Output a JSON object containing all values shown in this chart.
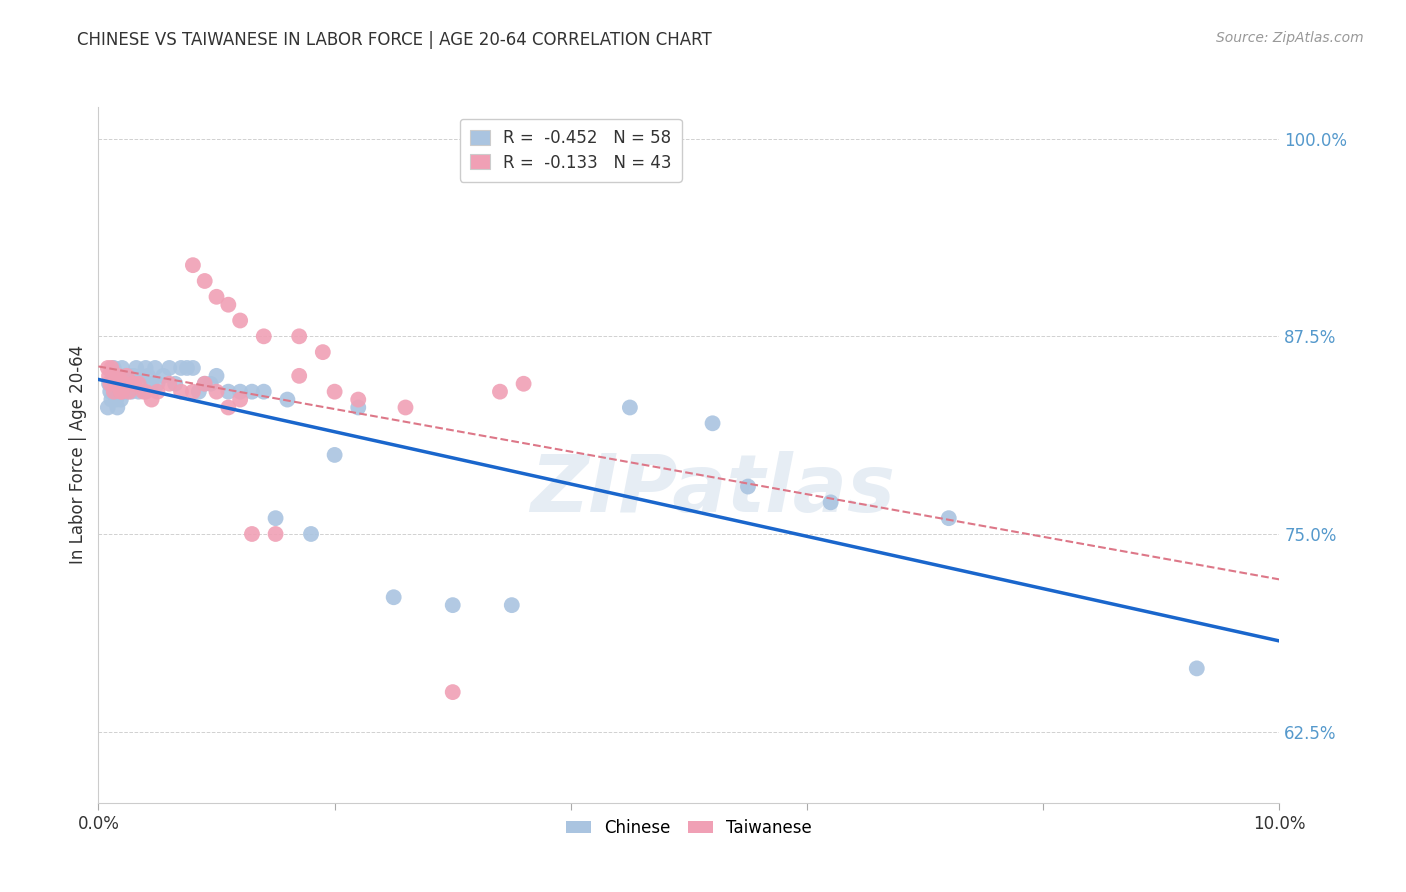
{
  "title": "CHINESE VS TAIWANESE IN LABOR FORCE | AGE 20-64 CORRELATION CHART",
  "source": "Source: ZipAtlas.com",
  "ylabel": "In Labor Force | Age 20-64",
  "xlim": [
    0.0,
    0.1
  ],
  "ylim": [
    0.58,
    1.02
  ],
  "yticks": [
    0.625,
    0.75,
    0.875,
    1.0
  ],
  "ytick_labels": [
    "62.5%",
    "75.0%",
    "87.5%",
    "100.0%"
  ],
  "xticks": [
    0.0,
    0.02,
    0.04,
    0.06,
    0.08,
    0.1
  ],
  "xtick_labels": [
    "0.0%",
    "",
    "",
    "",
    "",
    "10.0%"
  ],
  "chinese_R": -0.452,
  "chinese_N": 58,
  "taiwanese_R": -0.133,
  "taiwanese_N": 43,
  "chinese_color": "#aac4e0",
  "taiwanese_color": "#f0a0b5",
  "chinese_line_color": "#1a66cc",
  "taiwanese_line_color": "#dd7788",
  "background_color": "#ffffff",
  "watermark": "ZIPatlas",
  "chinese_x": [
    0.0008,
    0.0009,
    0.001,
    0.0011,
    0.0012,
    0.0013,
    0.0014,
    0.0015,
    0.0016,
    0.0017,
    0.0018,
    0.0019,
    0.002,
    0.0021,
    0.0022,
    0.0023,
    0.0024,
    0.0025,
    0.0026,
    0.0027,
    0.0028,
    0.003,
    0.0032,
    0.0034,
    0.0036,
    0.004,
    0.0042,
    0.0045,
    0.0048,
    0.005,
    0.0055,
    0.006,
    0.0065,
    0.007,
    0.0075,
    0.008,
    0.0085,
    0.009,
    0.0095,
    0.01,
    0.011,
    0.012,
    0.013,
    0.014,
    0.015,
    0.016,
    0.018,
    0.02,
    0.022,
    0.025,
    0.03,
    0.035,
    0.045,
    0.052,
    0.055,
    0.062,
    0.072,
    0.093
  ],
  "chinese_y": [
    0.83,
    0.845,
    0.84,
    0.835,
    0.85,
    0.855,
    0.84,
    0.835,
    0.83,
    0.84,
    0.845,
    0.835,
    0.855,
    0.845,
    0.84,
    0.85,
    0.84,
    0.845,
    0.845,
    0.85,
    0.84,
    0.85,
    0.855,
    0.84,
    0.85,
    0.855,
    0.85,
    0.845,
    0.855,
    0.845,
    0.85,
    0.855,
    0.845,
    0.855,
    0.855,
    0.855,
    0.84,
    0.845,
    0.845,
    0.85,
    0.84,
    0.84,
    0.84,
    0.84,
    0.76,
    0.835,
    0.75,
    0.8,
    0.83,
    0.71,
    0.705,
    0.705,
    0.83,
    0.82,
    0.78,
    0.77,
    0.76,
    0.665
  ],
  "taiwanese_x": [
    0.0008,
    0.0009,
    0.001,
    0.0011,
    0.0012,
    0.0013,
    0.0015,
    0.0017,
    0.0019,
    0.002,
    0.0022,
    0.0024,
    0.0026,
    0.003,
    0.0034,
    0.0038,
    0.004,
    0.0045,
    0.005,
    0.006,
    0.007,
    0.008,
    0.009,
    0.01,
    0.011,
    0.012,
    0.013,
    0.015,
    0.017,
    0.02,
    0.022,
    0.026,
    0.03,
    0.034,
    0.036,
    0.008,
    0.009,
    0.01,
    0.011,
    0.012,
    0.014,
    0.017,
    0.019
  ],
  "taiwanese_y": [
    0.855,
    0.85,
    0.845,
    0.855,
    0.85,
    0.84,
    0.845,
    0.85,
    0.84,
    0.84,
    0.845,
    0.85,
    0.84,
    0.845,
    0.845,
    0.84,
    0.84,
    0.835,
    0.84,
    0.845,
    0.84,
    0.84,
    0.845,
    0.84,
    0.83,
    0.835,
    0.75,
    0.75,
    0.85,
    0.84,
    0.835,
    0.83,
    0.65,
    0.84,
    0.845,
    0.92,
    0.91,
    0.9,
    0.895,
    0.885,
    0.875,
    0.875,
    0.865
  ],
  "chinese_line_x": [
    0.0,
    0.1
  ],
  "chinese_line_y": [
    0.845,
    0.665
  ],
  "taiwanese_line_x": [
    0.0,
    0.036
  ],
  "taiwanese_line_y": [
    0.845,
    0.81
  ]
}
